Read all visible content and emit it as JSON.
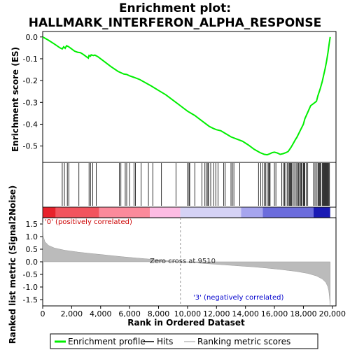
{
  "chart_data": {
    "type": "line",
    "title": "Enrichment plot:",
    "subtitle": "HALLMARK_INTERFERON_ALPHA_RESPONSE",
    "es_panel": {
      "ylabel": "Enrichment score (ES)",
      "ylim": [
        -0.575,
        0.025
      ],
      "yticks": [
        0.0,
        -0.1,
        -0.2,
        -0.3,
        -0.4,
        -0.5
      ],
      "ytick_labels": [
        "0.0",
        "-0.1",
        "-0.2",
        "-0.3",
        "-0.4",
        "-0.5"
      ],
      "grid": false,
      "line_color": "#00ee00",
      "profile": [
        [
          0,
          0.0
        ],
        [
          400,
          -0.015
        ],
        [
          800,
          -0.032
        ],
        [
          1200,
          -0.05
        ],
        [
          1350,
          -0.055
        ],
        [
          1450,
          -0.045
        ],
        [
          1550,
          -0.052
        ],
        [
          1650,
          -0.04
        ],
        [
          1800,
          -0.045
        ],
        [
          2000,
          -0.055
        ],
        [
          2200,
          -0.065
        ],
        [
          2400,
          -0.07
        ],
        [
          2600,
          -0.072
        ],
        [
          2800,
          -0.08
        ],
        [
          3000,
          -0.09
        ],
        [
          3150,
          -0.097
        ],
        [
          3200,
          -0.085
        ],
        [
          3300,
          -0.088
        ],
        [
          3350,
          -0.082
        ],
        [
          3500,
          -0.085
        ],
        [
          3600,
          -0.083
        ],
        [
          3800,
          -0.09
        ],
        [
          4200,
          -0.11
        ],
        [
          4700,
          -0.135
        ],
        [
          5200,
          -0.158
        ],
        [
          5600,
          -0.17
        ],
        [
          5800,
          -0.172
        ],
        [
          6000,
          -0.178
        ],
        [
          6300,
          -0.185
        ],
        [
          6700,
          -0.195
        ],
        [
          7100,
          -0.21
        ],
        [
          7500,
          -0.225
        ],
        [
          8000,
          -0.245
        ],
        [
          8500,
          -0.265
        ],
        [
          9000,
          -0.29
        ],
        [
          9500,
          -0.315
        ],
        [
          10000,
          -0.34
        ],
        [
          10500,
          -0.36
        ],
        [
          11000,
          -0.385
        ],
        [
          11500,
          -0.41
        ],
        [
          11800,
          -0.42
        ],
        [
          12000,
          -0.425
        ],
        [
          12300,
          -0.43
        ],
        [
          12600,
          -0.442
        ],
        [
          13000,
          -0.458
        ],
        [
          13400,
          -0.468
        ],
        [
          13800,
          -0.478
        ],
        [
          14200,
          -0.495
        ],
        [
          14600,
          -0.515
        ],
        [
          15000,
          -0.53
        ],
        [
          15300,
          -0.538
        ],
        [
          15500,
          -0.54
        ],
        [
          15700,
          -0.535
        ],
        [
          15850,
          -0.53
        ],
        [
          16000,
          -0.528
        ],
        [
          16200,
          -0.532
        ],
        [
          16400,
          -0.538
        ],
        [
          16600,
          -0.535
        ],
        [
          16800,
          -0.53
        ],
        [
          16950,
          -0.525
        ],
        [
          17050,
          -0.515
        ],
        [
          17150,
          -0.505
        ],
        [
          17300,
          -0.488
        ],
        [
          17450,
          -0.47
        ],
        [
          17550,
          -0.46
        ],
        [
          17700,
          -0.44
        ],
        [
          17850,
          -0.42
        ],
        [
          18000,
          -0.4
        ],
        [
          18100,
          -0.375
        ],
        [
          18300,
          -0.345
        ],
        [
          18500,
          -0.315
        ],
        [
          18700,
          -0.305
        ],
        [
          18900,
          -0.295
        ],
        [
          19000,
          -0.27
        ],
        [
          19150,
          -0.24
        ],
        [
          19300,
          -0.205
        ],
        [
          19400,
          -0.175
        ],
        [
          19500,
          -0.145
        ],
        [
          19600,
          -0.11
        ],
        [
          19700,
          -0.07
        ],
        [
          19780,
          -0.03
        ],
        [
          19850,
          0.0
        ]
      ]
    },
    "hits_panel": {
      "hit_ranks": [
        1350,
        1500,
        1700,
        1800,
        2500,
        3200,
        3300,
        3450,
        3700,
        5300,
        5400,
        5700,
        5800,
        6000,
        6300,
        6400,
        6800,
        7300,
        7600,
        8200,
        9200,
        10000,
        10100,
        10150,
        10500,
        11000,
        11200,
        11300,
        11400,
        11450,
        11600,
        11800,
        11950,
        12100,
        12500,
        12600,
        13000,
        13100,
        13200,
        13600,
        14900,
        15050,
        15200,
        15300,
        15400,
        15500,
        15600,
        15650,
        15700,
        16000,
        16100,
        16500,
        16600,
        16700,
        16800,
        16900,
        17000,
        17050,
        17100,
        17150,
        17200,
        17300,
        17400,
        17500,
        17600,
        17650,
        17700,
        17800,
        17850,
        17900,
        18000,
        18050,
        18100,
        18200,
        18300,
        18700,
        18800,
        18900,
        19000,
        19050,
        19100,
        19150,
        19200,
        19300,
        19350,
        19400,
        19450,
        19500,
        19550,
        19600,
        19650,
        19700,
        19750,
        19800
      ]
    },
    "metric_panel": {
      "ylabel": "Ranked list metric (Signal2Noise)",
      "ylim": [
        -1.75,
        1.75
      ],
      "yticks": [
        1.5,
        1.0,
        0.5,
        0.0,
        -0.5,
        -1.0,
        -1.5
      ],
      "ytick_labels": [
        "1.5",
        "1.0",
        "0.5",
        "0.0",
        "-0.5",
        "-1.0",
        "-1.5"
      ],
      "xlabel": "Rank in Ordered Dataset",
      "xlim": [
        0,
        20250
      ],
      "xticks": [
        0,
        2000,
        4000,
        6000,
        8000,
        10000,
        12000,
        14000,
        16000,
        18000,
        20000
      ],
      "xtick_labels": [
        "0",
        "2,000",
        "4,000",
        "6,000",
        "8,000",
        "10,000",
        "12,000",
        "14,000",
        "16,000",
        "18,000",
        "20,000"
      ],
      "zero_cross": 9510,
      "zero_cross_label": "Zero cross at 9510",
      "pos_label": "'0' (positively correlated)",
      "neg_label": "'3' (negatively correlated)",
      "pos_label_color": "#cc0000",
      "neg_label_color": "#0000cc",
      "fill_color": "#bbbbbb",
      "curve": [
        [
          0,
          1.55
        ],
        [
          50,
          1.0
        ],
        [
          150,
          0.8
        ],
        [
          400,
          0.65
        ],
        [
          800,
          0.55
        ],
        [
          1500,
          0.46
        ],
        [
          2500,
          0.38
        ],
        [
          3500,
          0.32
        ],
        [
          4500,
          0.26
        ],
        [
          5500,
          0.2
        ],
        [
          6500,
          0.15
        ],
        [
          7500,
          0.1
        ],
        [
          8500,
          0.05
        ],
        [
          9510,
          0.0
        ],
        [
          10500,
          -0.04
        ],
        [
          11500,
          -0.08
        ],
        [
          12500,
          -0.12
        ],
        [
          13500,
          -0.16
        ],
        [
          14500,
          -0.2
        ],
        [
          15500,
          -0.25
        ],
        [
          16500,
          -0.31
        ],
        [
          17500,
          -0.38
        ],
        [
          18300,
          -0.46
        ],
        [
          18900,
          -0.56
        ],
        [
          19300,
          -0.68
        ],
        [
          19550,
          -0.82
        ],
        [
          19680,
          -0.98
        ],
        [
          19750,
          -1.15
        ],
        [
          19800,
          -1.4
        ],
        [
          19850,
          -1.72
        ]
      ]
    },
    "colorbar": {
      "max_rank": 19850,
      "segments": [
        {
          "end": 900,
          "color": "#e8222b"
        },
        {
          "end": 3900,
          "color": "#f2545e"
        },
        {
          "end": 7400,
          "color": "#fb8a9b"
        },
        {
          "end": 9500,
          "color": "#fdbce3"
        },
        {
          "end": 13700,
          "color": "#d5d2f5"
        },
        {
          "end": 15200,
          "color": "#a6a5ee"
        },
        {
          "end": 18700,
          "color": "#6b6cdc"
        },
        {
          "end": 19850,
          "color": "#1a1ab4"
        }
      ]
    },
    "legend": {
      "placement": "bottom",
      "items": [
        {
          "label": "Enrichment profile",
          "color": "#00ee00"
        },
        {
          "label": "Hits",
          "color": "#000000"
        },
        {
          "label": "Ranking metric scores",
          "color": "#bbbbbb"
        }
      ]
    }
  }
}
